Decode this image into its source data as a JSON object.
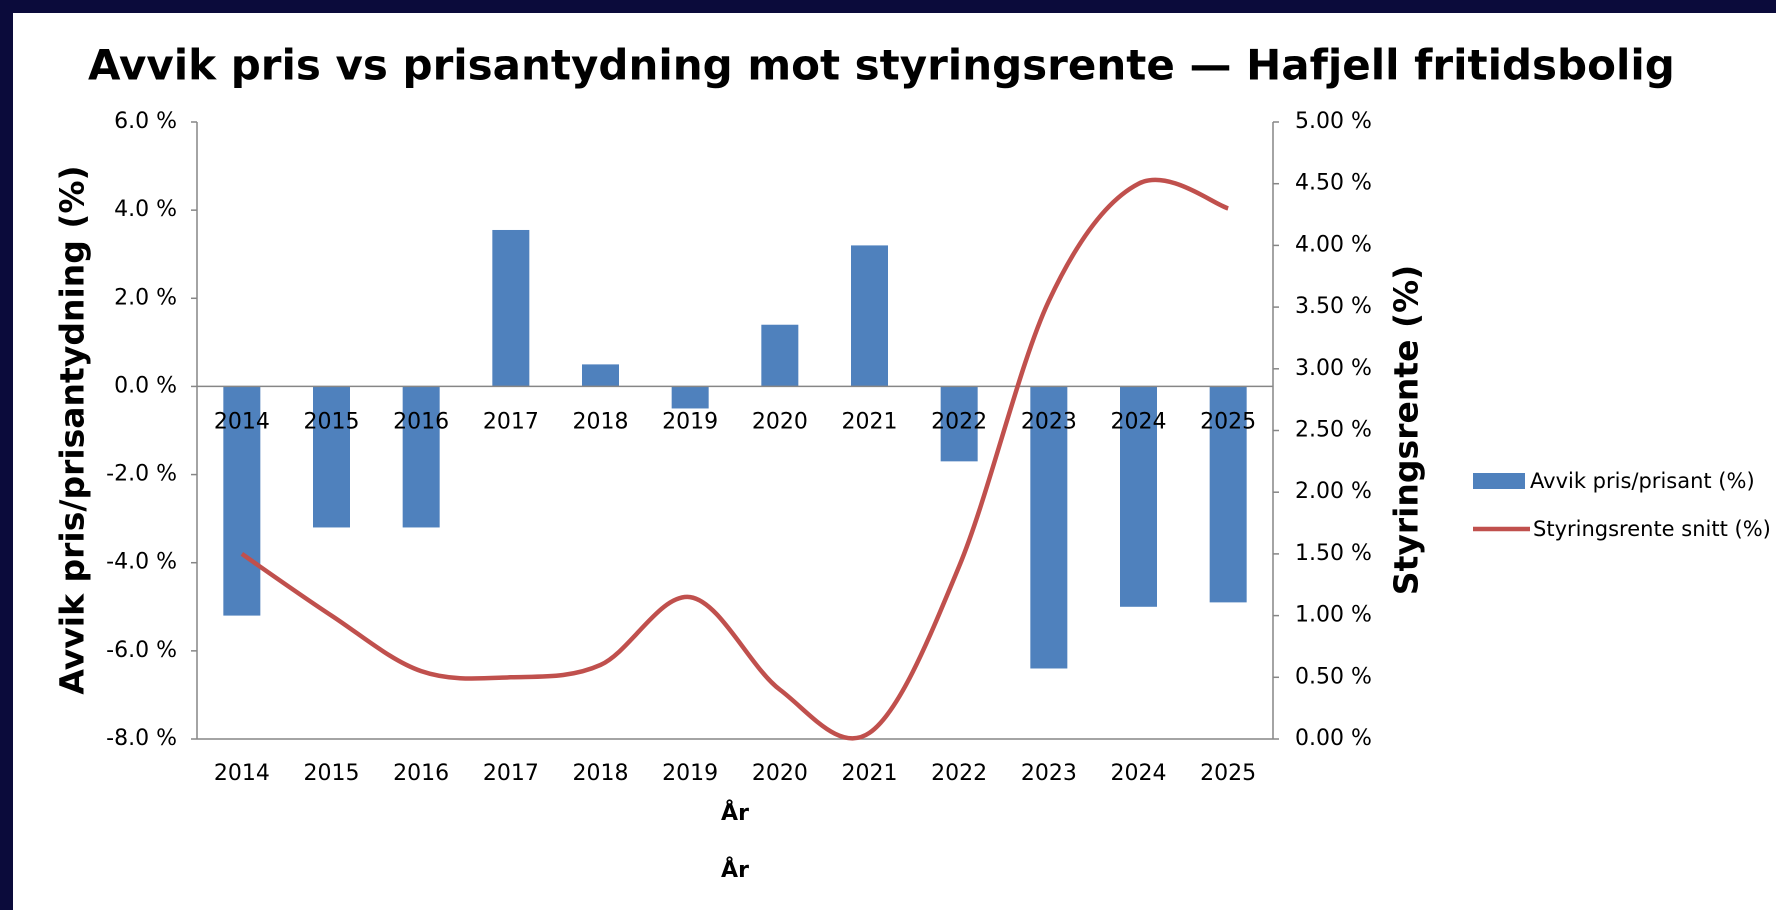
{
  "chart_data": {
    "type": "bar_line",
    "title": "Avvik pris vs prisantydning mot styringsrente — Hafjell fritidsbolig",
    "x_label": "År",
    "y_label": "Avvik pris/prisantydning (%)",
    "y2_label": "Styringsrente (%)",
    "categories": [
      "2014",
      "2015",
      "2016",
      "2017",
      "2018",
      "2019",
      "2020",
      "2021",
      "2022",
      "2023",
      "2024",
      "2025"
    ],
    "series": [
      {
        "name": "Avvik pris/prisant (%)",
        "type": "bar",
        "color": "#4f81bd",
        "values": [
          -5.2,
          -3.2,
          -3.2,
          3.55,
          0.5,
          -0.5,
          1.4,
          3.2,
          -1.7,
          -6.4,
          -5.0,
          -4.9
        ]
      },
      {
        "name": "Styringsrente snitt (%)",
        "type": "line",
        "axis": "y2",
        "color": "#c0504d",
        "values": [
          1.5,
          1.0,
          0.55,
          0.5,
          0.6,
          1.15,
          0.4,
          0.05,
          1.4,
          3.55,
          4.5,
          4.3
        ]
      }
    ],
    "ylim": [
      -8,
      6
    ],
    "yticks": [
      {
        "value": -8,
        "label": "-8.0 %"
      },
      {
        "value": -6,
        "label": "-6.0 %"
      },
      {
        "value": -4,
        "label": "-4.0 %"
      },
      {
        "value": -2,
        "label": "-2.0 %"
      },
      {
        "value": 0,
        "label": "0.0 %"
      },
      {
        "value": 2,
        "label": "2.0 %"
      },
      {
        "value": 4,
        "label": "4.0 %"
      },
      {
        "value": 6,
        "label": "6.0 %"
      }
    ],
    "y2lim": [
      0,
      5
    ],
    "y2ticks": [
      {
        "value": 0,
        "label": "0.00 %"
      },
      {
        "value": 0.5,
        "label": "0.50 %"
      },
      {
        "value": 1,
        "label": "1.00 %"
      },
      {
        "value": 1.5,
        "label": "1.50 %"
      },
      {
        "value": 2,
        "label": "2.00 %"
      },
      {
        "value": 2.5,
        "label": "2.50 %"
      },
      {
        "value": 3,
        "label": "3.00 %"
      },
      {
        "value": 3.5,
        "label": "3.50 %"
      },
      {
        "value": 4,
        "label": "4.00 %"
      },
      {
        "value": 4.5,
        "label": "4.50 %"
      },
      {
        "value": 5,
        "label": "5.00 %"
      }
    ],
    "legend": "right"
  }
}
